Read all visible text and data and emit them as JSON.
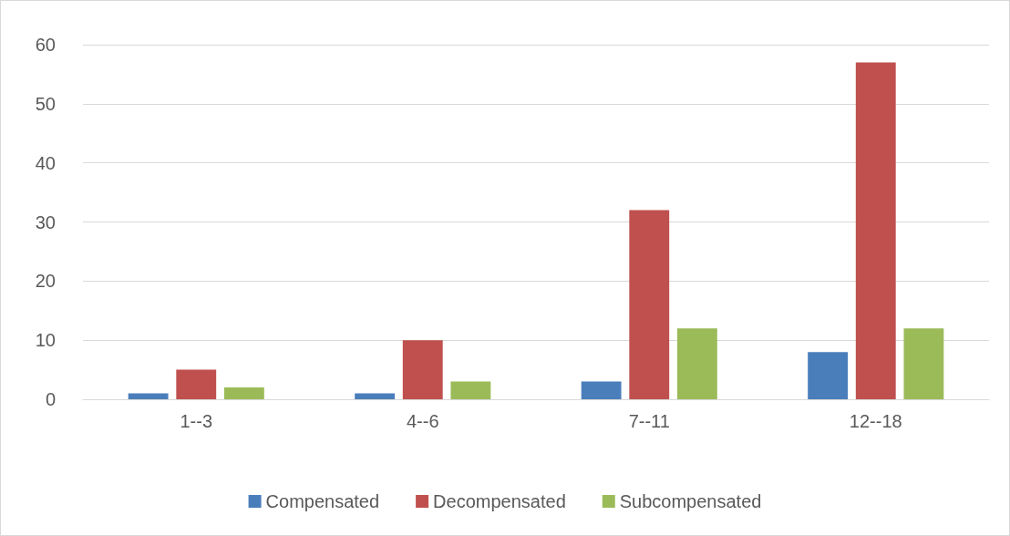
{
  "chart_data": {
    "type": "bar",
    "categories": [
      "1--3",
      "4--6",
      "7--11",
      "12--18"
    ],
    "series": [
      {
        "name": "Compensated",
        "color": "#4a7ebb",
        "values": [
          1,
          1,
          3,
          8
        ]
      },
      {
        "name": "Decompensated",
        "color": "#c0504d",
        "values": [
          5,
          10,
          32,
          57
        ]
      },
      {
        "name": "Subcompensated",
        "color": "#9bbb59",
        "values": [
          2,
          3,
          12,
          12
        ]
      }
    ],
    "ylim": [
      0,
      60
    ],
    "yticks": [
      0,
      10,
      20,
      30,
      40,
      50,
      60
    ],
    "grid": "y",
    "legend": "bottom"
  }
}
